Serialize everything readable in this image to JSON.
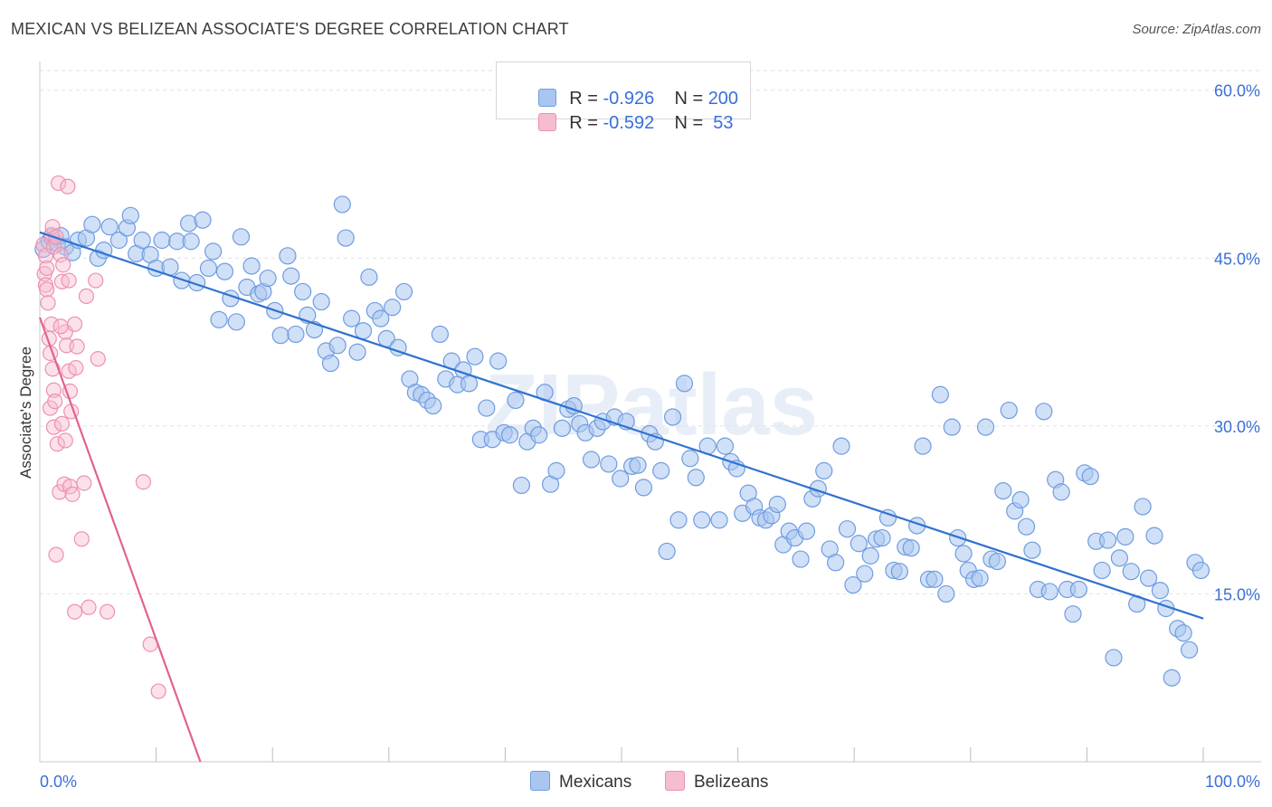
{
  "title": "MEXICAN VS BELIZEAN ASSOCIATE'S DEGREE CORRELATION CHART",
  "source": "Source: ZipAtlas.com",
  "watermark": "ZIPatlas",
  "colors": {
    "blue_fill": "#a9c6f0",
    "blue_stroke": "#6f9ce0",
    "blue_line": "#2f72d0",
    "pink_fill": "#f6bcd0",
    "pink_stroke": "#ee90b0",
    "pink_line": "#e2628f",
    "axis_text": "#3a6fd8",
    "grid": "#e2e2e2"
  },
  "legend": {
    "mexicans": {
      "r_label": "R = ",
      "r_value": "-0.926",
      "n_label": "N = ",
      "n_value": "200"
    },
    "belizeans": {
      "r_label": "R = ",
      "r_value": "-0.592",
      "n_label": "N = ",
      "n_value": " 53"
    }
  },
  "bottom_legend": {
    "mexicans": "Mexicans",
    "belizeans": "Belizeans"
  },
  "chart_data": {
    "type": "scatter",
    "title": "MEXICAN VS BELIZEAN ASSOCIATE'S DEGREE CORRELATION CHART",
    "xlabel": "",
    "ylabel": "Associate's Degree",
    "xlim": [
      0,
      100
    ],
    "ylim": [
      0,
      62
    ],
    "x_tick_labels": {
      "left": "0.0%",
      "right": "100.0%"
    },
    "x_minor_ticks": [
      10,
      20,
      30,
      40,
      50,
      60,
      70,
      80,
      90,
      100
    ],
    "y_ticks": [
      15,
      30,
      45,
      60
    ],
    "y_tick_labels": [
      "15.0%",
      "30.0%",
      "45.0%",
      "60.0%"
    ],
    "grid": true,
    "series": [
      {
        "name": "Mexicans",
        "r": -0.926,
        "n": 200,
        "trend": {
          "x": [
            0,
            100
          ],
          "y": [
            47.3,
            12.8
          ]
        },
        "points": [
          [
            0.3,
            45.8
          ],
          [
            0.8,
            46.5
          ],
          [
            1.0,
            46.9
          ],
          [
            1.5,
            46.3
          ],
          [
            1.8,
            47.0
          ],
          [
            2.2,
            46.0
          ],
          [
            2.8,
            45.5
          ],
          [
            3.3,
            46.6
          ],
          [
            4.0,
            46.8
          ],
          [
            4.5,
            48.0
          ],
          [
            5.0,
            45.0
          ],
          [
            5.5,
            45.7
          ],
          [
            6.0,
            47.8
          ],
          [
            6.8,
            46.6
          ],
          [
            7.5,
            47.7
          ],
          [
            7.8,
            48.8
          ],
          [
            8.3,
            45.4
          ],
          [
            8.8,
            46.6
          ],
          [
            9.5,
            45.3
          ],
          [
            10.0,
            44.1
          ],
          [
            10.5,
            46.6
          ],
          [
            11.2,
            44.2
          ],
          [
            11.8,
            46.5
          ],
          [
            12.2,
            43.0
          ],
          [
            12.8,
            48.1
          ],
          [
            13.0,
            46.5
          ],
          [
            13.5,
            42.8
          ],
          [
            14.0,
            48.4
          ],
          [
            14.5,
            44.1
          ],
          [
            14.9,
            45.6
          ],
          [
            15.4,
            39.5
          ],
          [
            15.9,
            43.8
          ],
          [
            16.4,
            41.4
          ],
          [
            16.9,
            39.3
          ],
          [
            17.3,
            46.9
          ],
          [
            17.8,
            42.4
          ],
          [
            18.2,
            44.3
          ],
          [
            18.8,
            41.8
          ],
          [
            19.2,
            42.0
          ],
          [
            19.6,
            43.2
          ],
          [
            20.2,
            40.3
          ],
          [
            20.7,
            38.1
          ],
          [
            21.3,
            45.2
          ],
          [
            21.6,
            43.4
          ],
          [
            22.0,
            38.2
          ],
          [
            22.6,
            42.0
          ],
          [
            23.0,
            39.9
          ],
          [
            23.6,
            38.6
          ],
          [
            24.2,
            41.1
          ],
          [
            24.6,
            36.7
          ],
          [
            25.0,
            35.6
          ],
          [
            25.6,
            37.2
          ],
          [
            26.0,
            49.8
          ],
          [
            26.3,
            46.8
          ],
          [
            26.8,
            39.6
          ],
          [
            27.3,
            36.6
          ],
          [
            27.8,
            38.5
          ],
          [
            28.3,
            43.3
          ],
          [
            28.8,
            40.3
          ],
          [
            29.3,
            39.6
          ],
          [
            29.8,
            37.8
          ],
          [
            30.3,
            40.6
          ],
          [
            30.8,
            37.0
          ],
          [
            31.3,
            42.0
          ],
          [
            31.8,
            34.2
          ],
          [
            32.3,
            33.0
          ],
          [
            32.8,
            32.8
          ],
          [
            33.3,
            32.3
          ],
          [
            33.8,
            31.8
          ],
          [
            34.4,
            38.2
          ],
          [
            34.9,
            34.2
          ],
          [
            35.4,
            35.8
          ],
          [
            35.9,
            33.7
          ],
          [
            36.4,
            35.0
          ],
          [
            36.9,
            33.8
          ],
          [
            37.4,
            36.2
          ],
          [
            37.9,
            28.8
          ],
          [
            38.4,
            31.6
          ],
          [
            38.9,
            28.8
          ],
          [
            39.4,
            35.8
          ],
          [
            39.9,
            29.4
          ],
          [
            40.4,
            29.2
          ],
          [
            40.9,
            32.3
          ],
          [
            41.4,
            24.7
          ],
          [
            41.9,
            28.6
          ],
          [
            42.4,
            29.8
          ],
          [
            42.9,
            29.2
          ],
          [
            43.4,
            33.0
          ],
          [
            43.9,
            24.8
          ],
          [
            44.4,
            26.0
          ],
          [
            44.9,
            29.8
          ],
          [
            45.4,
            31.5
          ],
          [
            45.9,
            31.8
          ],
          [
            46.4,
            30.2
          ],
          [
            46.9,
            29.4
          ],
          [
            47.4,
            27.0
          ],
          [
            47.9,
            29.8
          ],
          [
            48.4,
            30.4
          ],
          [
            48.9,
            26.6
          ],
          [
            49.4,
            30.8
          ],
          [
            49.9,
            25.3
          ],
          [
            50.4,
            30.4
          ],
          [
            50.9,
            26.4
          ],
          [
            51.4,
            26.5
          ],
          [
            51.9,
            24.5
          ],
          [
            52.4,
            29.3
          ],
          [
            52.9,
            28.6
          ],
          [
            53.4,
            26.0
          ],
          [
            53.9,
            18.8
          ],
          [
            54.4,
            30.8
          ],
          [
            54.9,
            21.6
          ],
          [
            55.4,
            33.8
          ],
          [
            55.9,
            27.1
          ],
          [
            56.4,
            25.4
          ],
          [
            56.9,
            21.6
          ],
          [
            57.4,
            28.2
          ],
          [
            58.4,
            21.6
          ],
          [
            58.9,
            28.2
          ],
          [
            59.4,
            26.8
          ],
          [
            59.9,
            26.2
          ],
          [
            60.4,
            22.2
          ],
          [
            60.9,
            24.0
          ],
          [
            61.4,
            22.8
          ],
          [
            61.9,
            21.8
          ],
          [
            62.4,
            21.6
          ],
          [
            62.9,
            22.0
          ],
          [
            63.4,
            23.0
          ],
          [
            63.9,
            19.4
          ],
          [
            64.4,
            20.6
          ],
          [
            64.9,
            20.0
          ],
          [
            65.4,
            18.1
          ],
          [
            65.9,
            20.6
          ],
          [
            66.4,
            23.5
          ],
          [
            66.9,
            24.4
          ],
          [
            67.4,
            26.0
          ],
          [
            67.9,
            19.0
          ],
          [
            68.4,
            17.8
          ],
          [
            68.9,
            28.2
          ],
          [
            69.4,
            20.8
          ],
          [
            69.9,
            15.8
          ],
          [
            70.4,
            19.5
          ],
          [
            70.9,
            16.8
          ],
          [
            71.4,
            18.4
          ],
          [
            71.9,
            19.9
          ],
          [
            72.4,
            20.0
          ],
          [
            72.9,
            21.8
          ],
          [
            73.4,
            17.1
          ],
          [
            73.9,
            17.0
          ],
          [
            74.4,
            19.2
          ],
          [
            74.9,
            19.1
          ],
          [
            75.4,
            21.1
          ],
          [
            75.9,
            28.2
          ],
          [
            76.4,
            16.3
          ],
          [
            76.9,
            16.3
          ],
          [
            77.4,
            32.8
          ],
          [
            77.9,
            15.0
          ],
          [
            78.4,
            29.9
          ],
          [
            78.9,
            20.0
          ],
          [
            79.4,
            18.6
          ],
          [
            79.8,
            17.1
          ],
          [
            80.3,
            16.3
          ],
          [
            80.8,
            16.4
          ],
          [
            81.3,
            29.9
          ],
          [
            81.8,
            18.1
          ],
          [
            82.3,
            17.9
          ],
          [
            82.8,
            24.2
          ],
          [
            83.3,
            31.4
          ],
          [
            83.8,
            22.4
          ],
          [
            84.3,
            23.4
          ],
          [
            84.8,
            21.0
          ],
          [
            85.3,
            18.9
          ],
          [
            85.8,
            15.4
          ],
          [
            86.3,
            31.3
          ],
          [
            86.8,
            15.2
          ],
          [
            87.3,
            25.2
          ],
          [
            87.8,
            24.1
          ],
          [
            88.3,
            15.4
          ],
          [
            88.8,
            13.2
          ],
          [
            89.3,
            15.4
          ],
          [
            89.8,
            25.8
          ],
          [
            90.3,
            25.5
          ],
          [
            90.8,
            19.7
          ],
          [
            91.3,
            17.1
          ],
          [
            91.8,
            19.8
          ],
          [
            92.3,
            9.3
          ],
          [
            92.8,
            18.2
          ],
          [
            93.3,
            20.1
          ],
          [
            93.8,
            17.0
          ],
          [
            94.3,
            14.1
          ],
          [
            94.8,
            22.8
          ],
          [
            95.3,
            16.4
          ],
          [
            95.8,
            20.2
          ],
          [
            96.3,
            15.3
          ],
          [
            96.8,
            13.7
          ],
          [
            97.3,
            7.5
          ],
          [
            97.8,
            11.9
          ],
          [
            98.3,
            11.5
          ],
          [
            98.8,
            10.0
          ],
          [
            99.3,
            17.8
          ],
          [
            99.8,
            17.1
          ]
        ]
      },
      {
        "name": "Belizeans",
        "r": -0.592,
        "n": 53,
        "trend": {
          "x": [
            0,
            13.8
          ],
          "y": [
            39.7,
            0
          ]
        },
        "points": [
          [
            0.3,
            46.2
          ],
          [
            0.4,
            43.6
          ],
          [
            0.5,
            42.6
          ],
          [
            0.6,
            42.2
          ],
          [
            0.7,
            41.0
          ],
          [
            0.8,
            37.8
          ],
          [
            0.9,
            36.5
          ],
          [
            1.0,
            39.1
          ],
          [
            1.1,
            35.1
          ],
          [
            1.2,
            33.2
          ],
          [
            0.5,
            45.2
          ],
          [
            0.6,
            44.1
          ],
          [
            1.0,
            47.1
          ],
          [
            1.1,
            47.8
          ],
          [
            1.2,
            46.0
          ],
          [
            1.4,
            46.9
          ],
          [
            1.6,
            51.7
          ],
          [
            1.8,
            45.3
          ],
          [
            1.9,
            42.9
          ],
          [
            2.0,
            44.4
          ],
          [
            2.2,
            38.4
          ],
          [
            2.3,
            37.2
          ],
          [
            2.4,
            51.4
          ],
          [
            2.5,
            34.9
          ],
          [
            2.6,
            33.1
          ],
          [
            2.7,
            31.3
          ],
          [
            0.9,
            31.6
          ],
          [
            1.2,
            29.9
          ],
          [
            1.3,
            32.2
          ],
          [
            1.5,
            28.4
          ],
          [
            1.7,
            24.1
          ],
          [
            1.9,
            30.2
          ],
          [
            2.1,
            24.8
          ],
          [
            2.2,
            28.7
          ],
          [
            2.6,
            24.6
          ],
          [
            2.8,
            23.9
          ],
          [
            3.0,
            39.1
          ],
          [
            3.1,
            35.2
          ],
          [
            3.2,
            37.1
          ],
          [
            3.6,
            19.9
          ],
          [
            3.8,
            24.9
          ],
          [
            4.0,
            41.6
          ],
          [
            4.2,
            13.8
          ],
          [
            4.8,
            43.0
          ],
          [
            5.0,
            36.0
          ],
          [
            5.8,
            13.4
          ],
          [
            3.0,
            13.4
          ],
          [
            8.9,
            25.0
          ],
          [
            9.5,
            10.5
          ],
          [
            10.2,
            6.3
          ],
          [
            1.4,
            18.5
          ],
          [
            1.8,
            38.9
          ],
          [
            2.5,
            43.0
          ]
        ]
      }
    ]
  }
}
